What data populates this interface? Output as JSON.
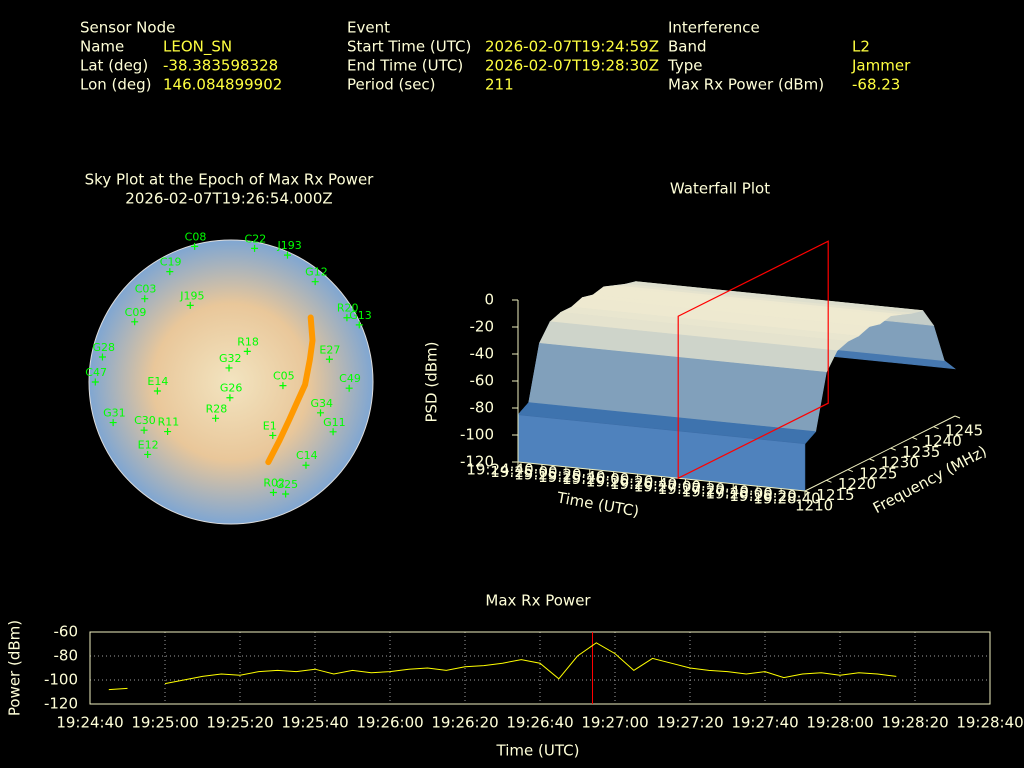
{
  "info": {
    "sensor_node": {
      "heading": "Sensor Node",
      "rows": [
        [
          "Name",
          "LEON_SN"
        ],
        [
          "Lat (deg)",
          "-38.383598328"
        ],
        [
          "Lon (deg)",
          "146.084899902"
        ]
      ]
    },
    "event": {
      "heading": "Event",
      "rows": [
        [
          "Start Time (UTC)",
          "2026-02-07T19:24:59Z"
        ],
        [
          "End Time (UTC)",
          "2026-02-07T19:28:30Z"
        ],
        [
          "Period (sec)",
          "211"
        ]
      ]
    },
    "interference": {
      "heading": "Interference",
      "rows": [
        [
          "Band",
          "L2"
        ],
        [
          "Type",
          "Jammer"
        ],
        [
          "Max Rx Power (dBm)",
          "-68.23"
        ]
      ]
    }
  },
  "chart_data": [
    {
      "type": "polar",
      "title": "Sky Plot at the Epoch of Max Rx Power",
      "subtitle": "2026-02-07T19:26:54.000Z",
      "rlim": [
        90,
        0
      ],
      "satellites": {
        "color": "#00ff00",
        "names": [
          "C08",
          "J193",
          "G12",
          "C19",
          "C03",
          "J195",
          "C09",
          "G28",
          "C47",
          "G31",
          "C30",
          "E12",
          "G26",
          "G32",
          "C05",
          "E27",
          "C49",
          "G11",
          "E1",
          "C14",
          "G25",
          "R20",
          "G13",
          "E14",
          "R28",
          "R11",
          "G34",
          "R18",
          "C22",
          "R02"
        ],
        "azimuth": [
          345,
          24,
          40,
          331,
          314,
          332,
          302,
          281,
          270,
          251,
          241,
          229,
          184,
          352,
          94,
          77,
          93,
          116,
          142,
          138,
          154,
          61,
          66,
          263,
          203,
          232,
          109,
          28,
          10,
          159
        ],
        "elevation": [
          1,
          2,
          7,
          10,
          14,
          35,
          18,
          7,
          4,
          11,
          27,
          20,
          80,
          81,
          57,
          26,
          15,
          18,
          47,
          19,
          11,
          6,
          1,
          43,
          65,
          39,
          30,
          68,
          4,
          15
        ]
      },
      "track": {
        "color": "#ff9900",
        "azimuth": [
          51,
          63,
          74,
          92,
          105,
          123,
          140,
          155
        ],
        "elevation": [
          25,
          32,
          38,
          43,
          46,
          46,
          42,
          34
        ]
      }
    },
    {
      "type": "surface",
      "title": "Waterfall Plot",
      "xlabel": "Time (UTC)",
      "ylabel": "Frequency (MHz)",
      "zlabel": "PSD (dBm)",
      "xlim": [
        "19:24:40",
        "19:28:40"
      ],
      "xticks": [
        "19:24:40",
        "19:25:00",
        "19:25:20",
        "19:25:40",
        "19:26:00",
        "19:26:20",
        "19:26:40",
        "19:27:00",
        "19:27:20",
        "19:27:40",
        "19:28:00",
        "19:28:20",
        "19:28:40"
      ],
      "ylim": [
        1210,
        1245
      ],
      "yticks": [
        1210,
        1215,
        1220,
        1225,
        1230,
        1235,
        1240,
        1245
      ],
      "zlim": [
        -120,
        0
      ],
      "zticks": [
        -120,
        -100,
        -80,
        -60,
        -40,
        -20,
        0
      ],
      "frequency": [
        1210,
        1212.5,
        1215,
        1217.5,
        1220,
        1222.5,
        1225,
        1227.5,
        1230,
        1232.5,
        1235,
        1237.5,
        1240,
        1242.5,
        1245
      ],
      "psd": [
        -85,
        -80,
        -40,
        -28,
        -25,
        -25,
        -22,
        -24,
        -22,
        -25,
        -28,
        -30,
        -45,
        -75,
        -85
      ],
      "marker_x": "19:26:54",
      "marker_color": "#ff0000"
    },
    {
      "type": "line",
      "title": "Max Rx Power",
      "xlabel": "Time (UTC)",
      "ylabel": "Power (dBm)",
      "color": "#ffff00",
      "grid": true,
      "xlim": [
        "19:24:40",
        "19:28:40"
      ],
      "xticks": [
        "19:24:40",
        "19:25:00",
        "19:25:20",
        "19:25:40",
        "19:26:00",
        "19:26:20",
        "19:26:40",
        "19:27:00",
        "19:27:20",
        "19:27:40",
        "19:28:00",
        "19:28:20",
        "19:28:40"
      ],
      "ylim": [
        -120,
        -60
      ],
      "yticks": [
        -120,
        -100,
        -80,
        -60
      ],
      "x": [
        "19:24:45",
        "19:24:50",
        "19:24:55",
        "19:25:00",
        "19:25:05",
        "19:25:10",
        "19:25:15",
        "19:25:20",
        "19:25:25",
        "19:25:30",
        "19:25:35",
        "19:25:40",
        "19:25:45",
        "19:25:50",
        "19:25:55",
        "19:26:00",
        "19:26:05",
        "19:26:10",
        "19:26:15",
        "19:26:20",
        "19:26:25",
        "19:26:30",
        "19:26:35",
        "19:26:40",
        "19:26:45",
        "19:26:50",
        "19:26:55",
        "19:27:00",
        "19:27:05",
        "19:27:10",
        "19:27:15",
        "19:27:20",
        "19:27:25",
        "19:27:30",
        "19:27:35",
        "19:27:40",
        "19:27:45",
        "19:27:50",
        "19:27:55",
        "19:28:00",
        "19:28:05",
        "19:28:10",
        "19:28:15"
      ],
      "values": [
        -108,
        -107,
        null,
        -103,
        -100,
        -97,
        -95,
        -96,
        -93,
        -92,
        -93,
        -91,
        -95,
        -92,
        -94,
        -93,
        -91,
        -90,
        -92,
        -89,
        -88,
        -86,
        -83,
        -86,
        -99,
        -80,
        -69,
        -78,
        -92,
        -82,
        -86,
        -90,
        -92,
        -93,
        -95,
        -93,
        -98,
        -95,
        -94,
        -96,
        -94,
        -95,
        -97
      ],
      "marker_x": "19:26:54",
      "marker_color": "#ff0000"
    }
  ]
}
